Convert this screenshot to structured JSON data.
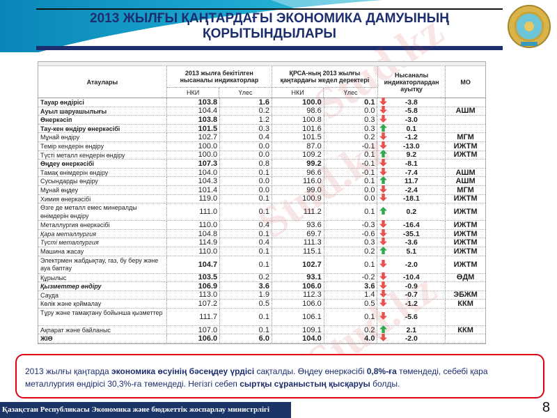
{
  "title": "2013 ЖЫЛҒЫ ҚАҢТАРДАҒЫ ЭКОНОМИКА ДАМУЫНЫҢ ҚОРЫТЫНДЫЛАРЫ",
  "emblem_icon": "kazakhstan-state-emblem",
  "watermark": "Stud.kz",
  "table": {
    "headers": {
      "name": "Атаулары",
      "target": "2013 жылға бекітілген нысаналы индикаторлар",
      "operational": "ҚРСА-ның 2013 жылғы қаңтардағы жедел деректері",
      "deviation": "Нысаналы индикаторлардан ауытқу",
      "mo": "МО",
      "nki": "НКИ",
      "share": "Үлес"
    },
    "rows": [
      {
        "name": "Тауар өндірісі",
        "t_nki": "103.8",
        "t_share": "1.6",
        "o_nki": "100.0",
        "o_share": "0.1",
        "trend": "down",
        "dev": "-3.8",
        "mo": "",
        "name_bold": true,
        "bold": [
          true,
          true,
          true,
          true
        ]
      },
      {
        "name": "Ауыл шаруашылығы",
        "t_nki": "104.4",
        "t_share": "0.2",
        "o_nki": "98.6",
        "o_share": "0.0",
        "trend": "down",
        "dev": "-5.8",
        "mo": "АШМ",
        "name_bold": true,
        "bold": [
          false,
          false,
          false,
          false
        ]
      },
      {
        "name": "Өнеркәсіп",
        "t_nki": "103.8",
        "t_share": "1.2",
        "o_nki": "100.8",
        "o_share": "0.3",
        "trend": "down",
        "dev": "-3.0",
        "mo": "",
        "name_bold": true,
        "bold": [
          true,
          false,
          false,
          false
        ]
      },
      {
        "name": "Тау-кен өндіру өнеркәсібі",
        "t_nki": "101.5",
        "t_share": "0.3",
        "o_nki": "101.6",
        "o_share": "0.3",
        "trend": "up",
        "dev": "0.1",
        "mo": "",
        "name_bold": true,
        "bold": [
          true,
          false,
          false,
          false
        ]
      },
      {
        "name": "Мұнай өндіру",
        "t_nki": "102.7",
        "t_share": "0.4",
        "o_nki": "101.5",
        "o_share": "0.2",
        "trend": "down",
        "dev": "-1.2",
        "mo": "МГМ",
        "bold": [
          false,
          false,
          false,
          false
        ]
      },
      {
        "name": "Темір кендерін өндіру",
        "t_nki": "100.0",
        "t_share": "0.0",
        "o_nki": "87.0",
        "o_share": "-0.1",
        "trend": "down",
        "dev": "-13.0",
        "mo": "ИЖТМ",
        "bold": [
          false,
          false,
          false,
          false
        ]
      },
      {
        "name": "Түсті металл кендерін өндіру",
        "t_nki": "100.0",
        "t_share": "0.0",
        "o_nki": "109.2",
        "o_share": "0.1",
        "trend": "up",
        "dev": "9.2",
        "mo": "ИЖТМ",
        "bold": [
          false,
          false,
          false,
          false
        ]
      },
      {
        "name": "Өңдеу өнеркәсібі",
        "t_nki": "107.3",
        "t_share": "0.8",
        "o_nki": "99.2",
        "o_share": "-0.1",
        "trend": "down",
        "dev": "-8.1",
        "mo": "",
        "name_bold": true,
        "bold": [
          true,
          false,
          true,
          false
        ]
      },
      {
        "name": "Тамақ өнімдерін өндіру",
        "t_nki": "104.0",
        "t_share": "0.1",
        "o_nki": "96.6",
        "o_share": "-0.1",
        "trend": "down",
        "dev": "-7.4",
        "mo": "АШМ",
        "bold": [
          false,
          false,
          false,
          false
        ]
      },
      {
        "name": "Сусындарды өндіру",
        "t_nki": "104.3",
        "t_share": "0.0",
        "o_nki": "116.0",
        "o_share": "0.1",
        "trend": "up",
        "dev": "11.7",
        "mo": "АШМ",
        "bold": [
          false,
          false,
          false,
          false
        ]
      },
      {
        "name": "Мұнай өңдеу",
        "t_nki": "101.4",
        "t_share": "0.0",
        "o_nki": "99.0",
        "o_share": "0.0",
        "trend": "down",
        "dev": "-2.4",
        "mo": "МГМ",
        "bold": [
          false,
          false,
          false,
          false
        ]
      },
      {
        "name": "Химия өнеркәсібі",
        "t_nki": "119.0",
        "t_share": "0.1",
        "o_nki": "100.9",
        "o_share": "0.0",
        "trend": "down",
        "dev": "-18.1",
        "mo": "ИЖТМ",
        "bold": [
          false,
          false,
          false,
          false
        ]
      },
      {
        "name": "Өзге де металл емес минералды өнімдерін өндіру",
        "t_nki": "111.0",
        "t_share": "0.1",
        "o_nki": "111.2",
        "o_share": "0.1",
        "trend": "up",
        "dev": "0.2",
        "mo": "ИЖТМ",
        "tall": true,
        "bold": [
          false,
          false,
          false,
          false
        ]
      },
      {
        "name": "Металлургия өнеркәсібі",
        "t_nki": "110.0",
        "t_share": "0.4",
        "o_nki": "93.6",
        "o_share": "-0.3",
        "trend": "down",
        "dev": "-16.4",
        "mo": "ИЖТМ",
        "bold": [
          false,
          false,
          false,
          false
        ]
      },
      {
        "name": "Қара металлургия",
        "t_nki": "104.8",
        "t_share": "0.1",
        "o_nki": "69.7",
        "o_share": "-0.6",
        "trend": "down",
        "dev": "-35.1",
        "mo": "ИЖТМ",
        "italic": true,
        "bold": [
          false,
          false,
          false,
          false
        ]
      },
      {
        "name": "Түсті металлургия",
        "t_nki": "114.9",
        "t_share": "0.4",
        "o_nki": "111.3",
        "o_share": "0.3",
        "trend": "down",
        "dev": "-3.6",
        "mo": "ИЖТМ",
        "italic": true,
        "bold": [
          false,
          false,
          false,
          false
        ]
      },
      {
        "name": "Машина жасау",
        "t_nki": "110.0",
        "t_share": "0.1",
        "o_nki": "115.1",
        "o_share": "0.2",
        "trend": "up",
        "dev": "5.1",
        "mo": "ИЖТМ",
        "bold": [
          false,
          false,
          false,
          false
        ]
      },
      {
        "name": "Электрмен жабдықтау, газ, бу беру және ауа баптау",
        "t_nki": "104.7",
        "t_share": "0.1",
        "o_nki": "102.7",
        "o_share": "0.1",
        "trend": "down",
        "dev": "-2.0",
        "mo": "ИЖТМ",
        "tall": true,
        "bold": [
          true,
          false,
          true,
          false
        ]
      },
      {
        "name": "Құрылыс",
        "t_nki": "103.5",
        "t_share": "0.2",
        "o_nki": "93.1",
        "o_share": "-0.2",
        "trend": "down",
        "dev": "-10.4",
        "mo": "ӨДМ",
        "bold": [
          true,
          false,
          true,
          false
        ]
      },
      {
        "name": "Қызметтер өндіру",
        "t_nki": "106.9",
        "t_share": "3.6",
        "o_nki": "106.0",
        "o_share": "3.6",
        "trend": "down",
        "dev": "-0.9",
        "mo": "",
        "name_bold": true,
        "italic": true,
        "bold": [
          true,
          true,
          true,
          true
        ]
      },
      {
        "name": "Сауда",
        "t_nki": "113.0",
        "t_share": "1.9",
        "o_nki": "112.3",
        "o_share": "1.4",
        "trend": "down",
        "dev": "-0.7",
        "mo": "ЭБЖМ",
        "bold": [
          false,
          false,
          false,
          false
        ]
      },
      {
        "name": "Көлік және қоймалау",
        "t_nki": "107.2",
        "t_share": "0.5",
        "o_nki": "106.0",
        "o_share": "0.5",
        "trend": "down",
        "dev": "-1.2",
        "mo": "ККМ",
        "bold": [
          false,
          false,
          false,
          false
        ]
      },
      {
        "name": "Тұру және тамақтану бойынша қызметтер",
        "t_nki": "111.7",
        "t_share": "0.1",
        "o_nki": "106.1",
        "o_share": "0.1",
        "trend": "down",
        "dev": "-5.6",
        "mo": "",
        "tall": true,
        "bold": [
          false,
          false,
          false,
          false
        ]
      },
      {
        "name": "Ақпарат және байланыс",
        "t_nki": "107.0",
        "t_share": "0.1",
        "o_nki": "109.1",
        "o_share": "0.2",
        "trend": "up",
        "dev": "2.1",
        "mo": "ККМ",
        "bold": [
          false,
          false,
          false,
          false
        ]
      },
      {
        "name": "ЖІӨ",
        "t_nki": "106.0",
        "t_share": "6.0",
        "o_nki": "104.0",
        "o_share": "4.0",
        "trend": "down",
        "dev": "-2.0",
        "mo": "",
        "name_bold": true,
        "bold": [
          true,
          true,
          true,
          true
        ]
      }
    ]
  },
  "note": {
    "p1": "2013 жылғы қаңтарда ",
    "b1": "экономика өсуінің бәсеңдеу үрдісі",
    "p2": " сақталды. Өңдеу өнеркәсібі ",
    "b2": "0,8%-ға",
    "p3": "  төмендеді, себебі қара металлургия өндірісі 30,3%-ға төмендеді. Негізгі себеп ",
    "b3": "сыртқы сұраныстың қысқаруы",
    "p4": " болды."
  },
  "footer": "Қазақстан Республикасы Экономика және бюджеттік жоспарлау министрлігі",
  "page_number": "8",
  "colors": {
    "title": "#1c2e6e",
    "footer_bg": "#1a3566",
    "note_border": "#e00010",
    "arrow_up": "#2fa84f",
    "arrow_down": "#e85050"
  }
}
